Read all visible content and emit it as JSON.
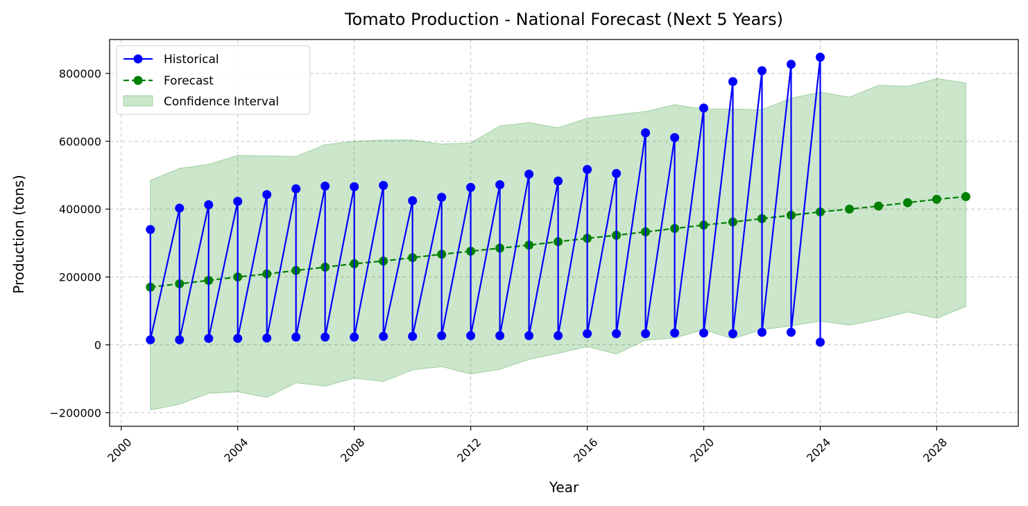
{
  "chart_data": {
    "type": "line",
    "title": "Tomato Production - National Forecast (Next 5 Years)",
    "xlabel": "Year",
    "ylabel": "Production (tons)",
    "xlim": [
      1999.6,
      2030.8
    ],
    "ylim": [
      -240000,
      900000
    ],
    "x_ticks": [
      2000,
      2004,
      2008,
      2012,
      2016,
      2020,
      2024,
      2028
    ],
    "x_tick_labels": [
      "2000",
      "2004",
      "2008",
      "2012",
      "2016",
      "2020",
      "2024",
      "2028"
    ],
    "y_ticks": [
      -200000,
      0,
      200000,
      400000,
      600000,
      800000
    ],
    "y_tick_labels": [
      "−200000",
      "0",
      "200000",
      "400000",
      "600000",
      "800000"
    ],
    "grid": true,
    "legend_position": "upper-left",
    "colors": {
      "historical": "#0000ff",
      "forecast": "#008000",
      "band": "#008000"
    },
    "series": [
      {
        "name": "Historical",
        "style": "solid-line-circle-markers",
        "points": [
          [
            2001,
            340000
          ],
          [
            2001,
            15000
          ],
          [
            2002,
            403000
          ],
          [
            2002,
            15000
          ],
          [
            2003,
            413000
          ],
          [
            2003,
            19000
          ],
          [
            2004,
            423000
          ],
          [
            2004,
            19000
          ],
          [
            2005,
            443000
          ],
          [
            2005,
            20000
          ],
          [
            2006,
            460000
          ],
          [
            2006,
            23000
          ],
          [
            2007,
            468000
          ],
          [
            2007,
            23000
          ],
          [
            2008,
            466000
          ],
          [
            2008,
            23000
          ],
          [
            2009,
            470000
          ],
          [
            2009,
            25000
          ],
          [
            2010,
            425000
          ],
          [
            2010,
            25000
          ],
          [
            2011,
            435000
          ],
          [
            2011,
            27000
          ],
          [
            2012,
            464000
          ],
          [
            2012,
            27000
          ],
          [
            2013,
            472000
          ],
          [
            2013,
            27000
          ],
          [
            2014,
            503000
          ],
          [
            2014,
            27000
          ],
          [
            2015,
            483000
          ],
          [
            2015,
            27000
          ],
          [
            2016,
            517000
          ],
          [
            2016,
            33000
          ],
          [
            2017,
            505000
          ],
          [
            2017,
            33000
          ],
          [
            2018,
            625000
          ],
          [
            2018,
            33000
          ],
          [
            2019,
            611000
          ],
          [
            2019,
            35000
          ],
          [
            2020,
            698000
          ],
          [
            2020,
            35000
          ],
          [
            2021,
            776000
          ],
          [
            2021,
            33000
          ],
          [
            2022,
            808000
          ],
          [
            2022,
            37000
          ],
          [
            2023,
            827000
          ],
          [
            2023,
            37000
          ],
          [
            2024,
            848000
          ],
          [
            2024,
            8000
          ]
        ]
      },
      {
        "name": "Forecast",
        "style": "dashed-line-circle-markers",
        "points": [
          [
            2001,
            170000
          ],
          [
            2002,
            180000
          ],
          [
            2003,
            190000
          ],
          [
            2004,
            200000
          ],
          [
            2005,
            209000
          ],
          [
            2006,
            219000
          ],
          [
            2007,
            229000
          ],
          [
            2008,
            239000
          ],
          [
            2009,
            247000
          ],
          [
            2010,
            257000
          ],
          [
            2011,
            267000
          ],
          [
            2012,
            276000
          ],
          [
            2013,
            285000
          ],
          [
            2014,
            294000
          ],
          [
            2015,
            304000
          ],
          [
            2016,
            314000
          ],
          [
            2017,
            323000
          ],
          [
            2018,
            333000
          ],
          [
            2019,
            343000
          ],
          [
            2020,
            353000
          ],
          [
            2021,
            362000
          ],
          [
            2022,
            372000
          ],
          [
            2023,
            382000
          ],
          [
            2024,
            392000
          ],
          [
            2025,
            400000
          ],
          [
            2026,
            409000
          ],
          [
            2027,
            419000
          ],
          [
            2028,
            429000
          ],
          [
            2029,
            437000
          ]
        ]
      },
      {
        "name": "Confidence Interval",
        "style": "filled-band",
        "x": [
          2001,
          2002,
          2003,
          2004,
          2005,
          2006,
          2007,
          2008,
          2009,
          2010,
          2011,
          2012,
          2013,
          2014,
          2015,
          2016,
          2017,
          2018,
          2019,
          2020,
          2021,
          2022,
          2023,
          2024,
          2025,
          2026,
          2027,
          2028,
          2029
        ],
        "upper": [
          485000,
          520000,
          532000,
          558000,
          557000,
          555000,
          590000,
          600000,
          604000,
          604000,
          592000,
          595000,
          645000,
          655000,
          640000,
          668000,
          678000,
          688000,
          708000,
          695000,
          695000,
          693000,
          727000,
          745000,
          730000,
          765000,
          762000,
          785000,
          772000
        ],
        "lower": [
          -192000,
          -175000,
          -143000,
          -138000,
          -155000,
          -112000,
          -122000,
          -98000,
          -108000,
          -74000,
          -64000,
          -86000,
          -72000,
          -43000,
          -25000,
          -5000,
          -27000,
          14000,
          20000,
          45000,
          18000,
          45000,
          56000,
          70000,
          58000,
          75000,
          97000,
          78000,
          113000
        ]
      }
    ]
  }
}
